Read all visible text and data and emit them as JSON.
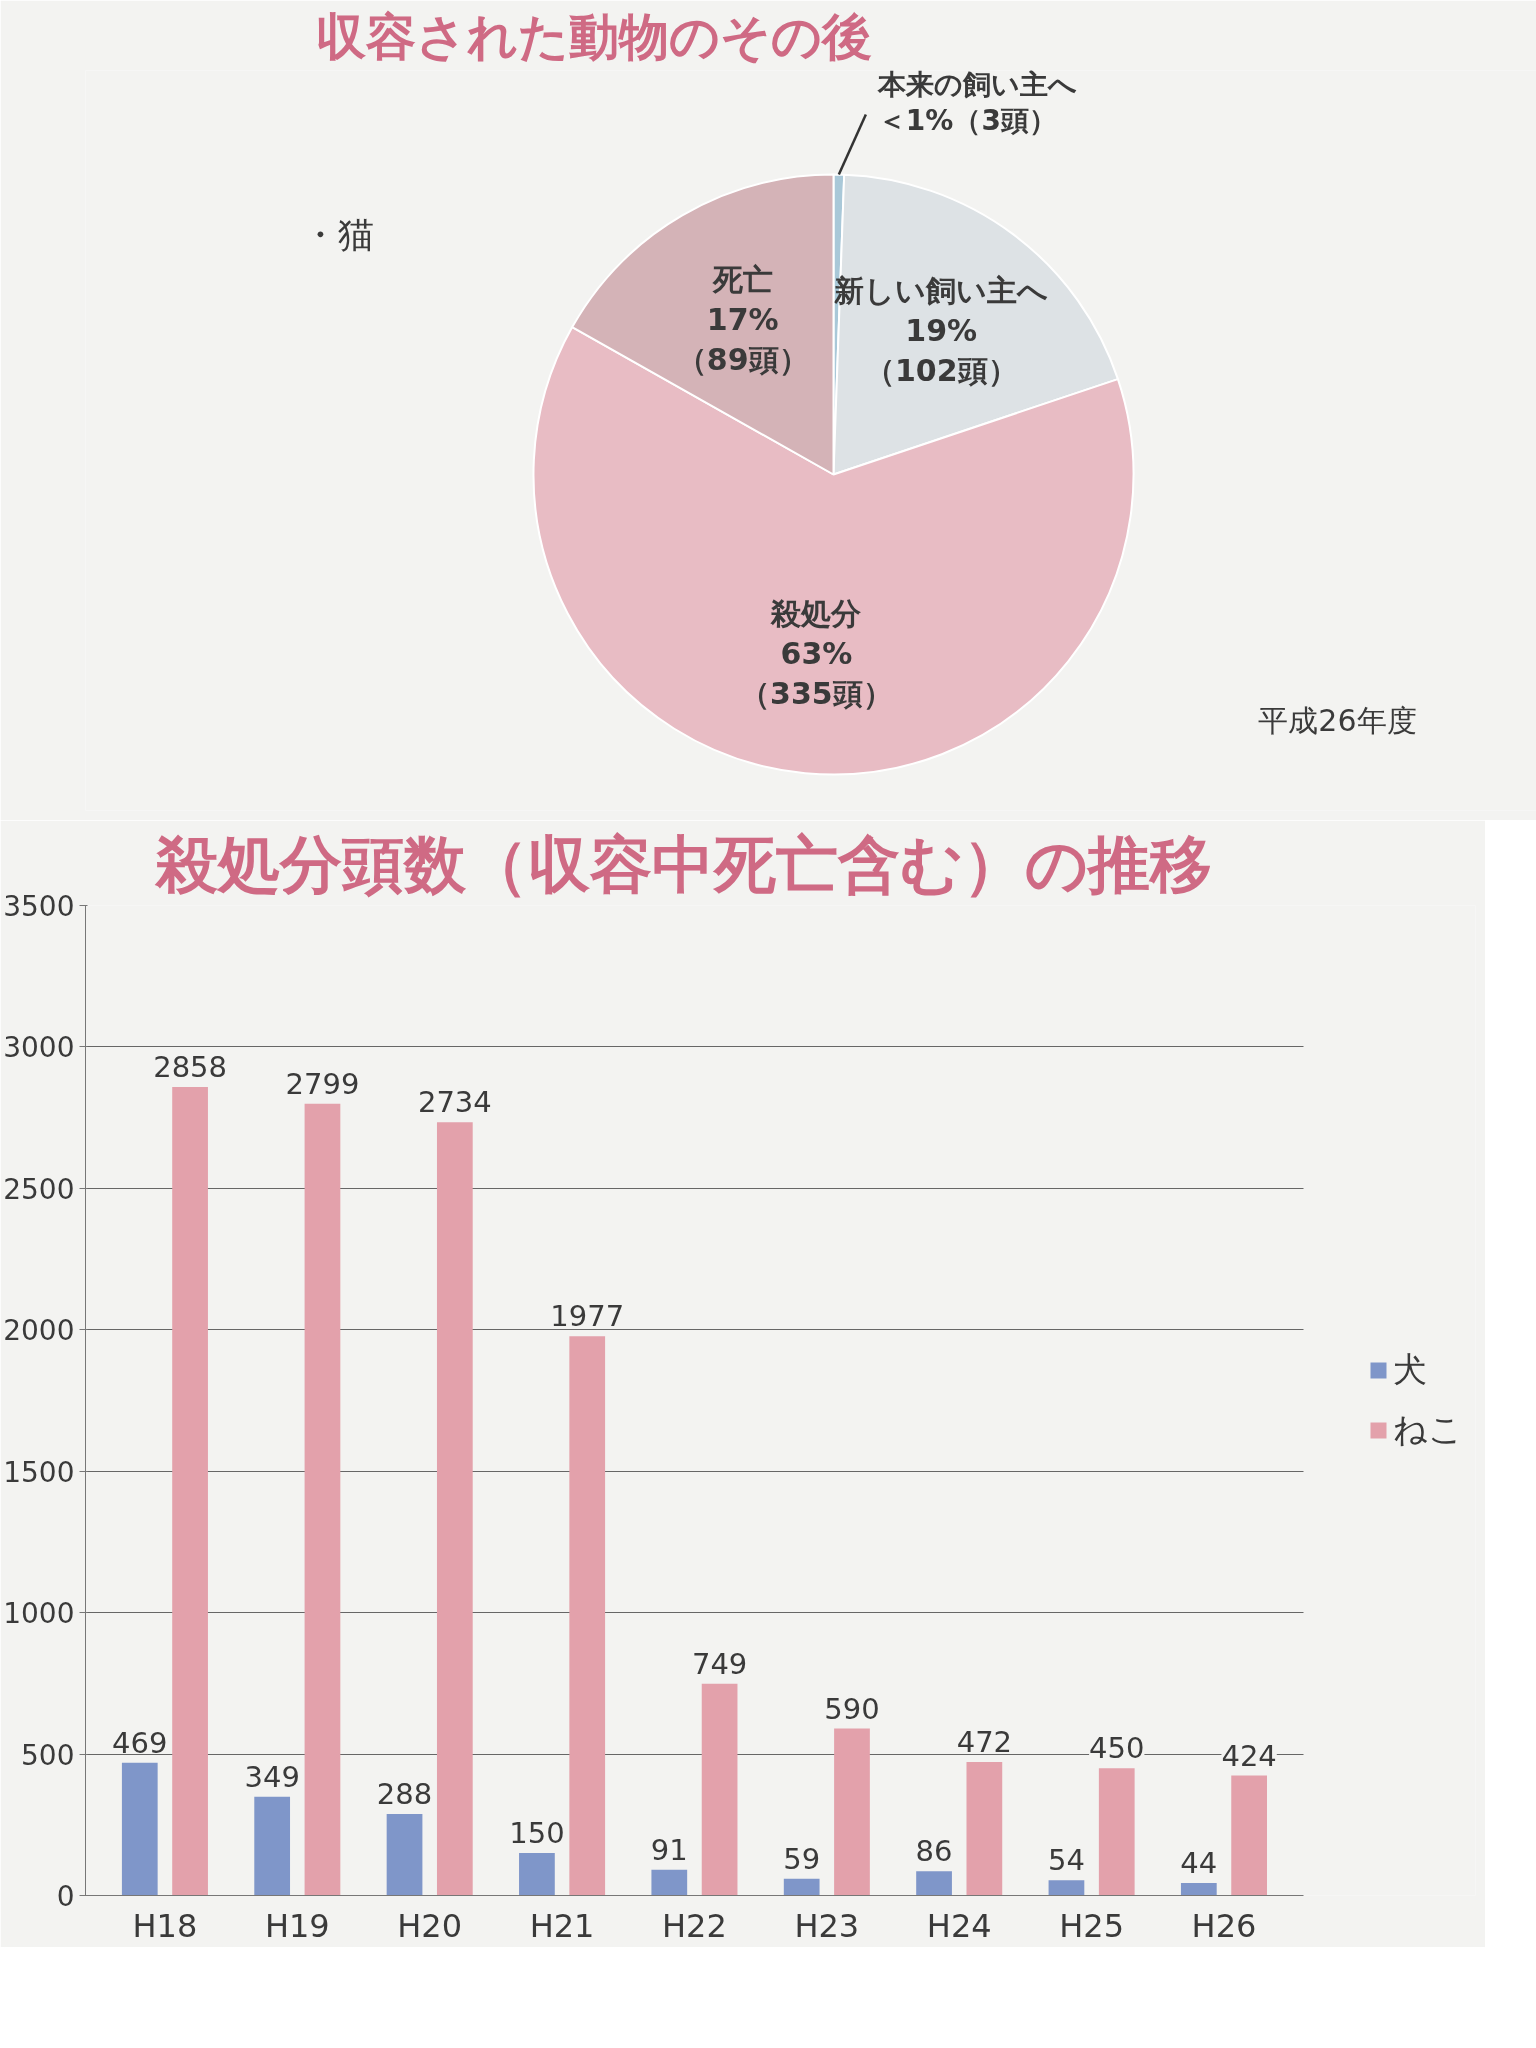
{
  "chart_data": [
    {
      "type": "pie",
      "title": "収容された動物のその後",
      "subtitle": "・猫",
      "categories": [
        "本来の飼い主へ",
        "新しい飼い主へ",
        "殺処分",
        "死亡"
      ],
      "values": [
        3,
        102,
        335,
        89
      ],
      "colors": [
        "#a9c8d8",
        "#dde2e5",
        "#e8bcc4",
        "#d4b3b7"
      ],
      "value_labels": [
        "＜1%（3頭）",
        "19%\n（102頭）",
        "63%\n（335頭）",
        "17%\n（89頭）"
      ],
      "annotations": [
        "平成26年度"
      ]
    },
    {
      "type": "bar",
      "title": "殺処分頭数（収容中死亡含む）の推移",
      "categories": [
        "H18",
        "H19",
        "H20",
        "H21",
        "H22",
        "H23",
        "H24",
        "H25",
        "H26"
      ],
      "series": [
        {
          "name": "犬",
          "color": "#7f96c9",
          "values": [
            469,
            349,
            288,
            150,
            91,
            59,
            86,
            54,
            44
          ]
        },
        {
          "name": "ねこ",
          "color": "#e3a1ab",
          "values": [
            2858,
            2799,
            2734,
            1977,
            749,
            590,
            472,
            450,
            424
          ]
        }
      ],
      "ylim": [
        0,
        3500
      ],
      "yticks": [
        0,
        500,
        1000,
        1500,
        2000,
        2500,
        3000,
        3500
      ],
      "grid": "y",
      "legend": "right",
      "data_labels": true
    }
  ]
}
